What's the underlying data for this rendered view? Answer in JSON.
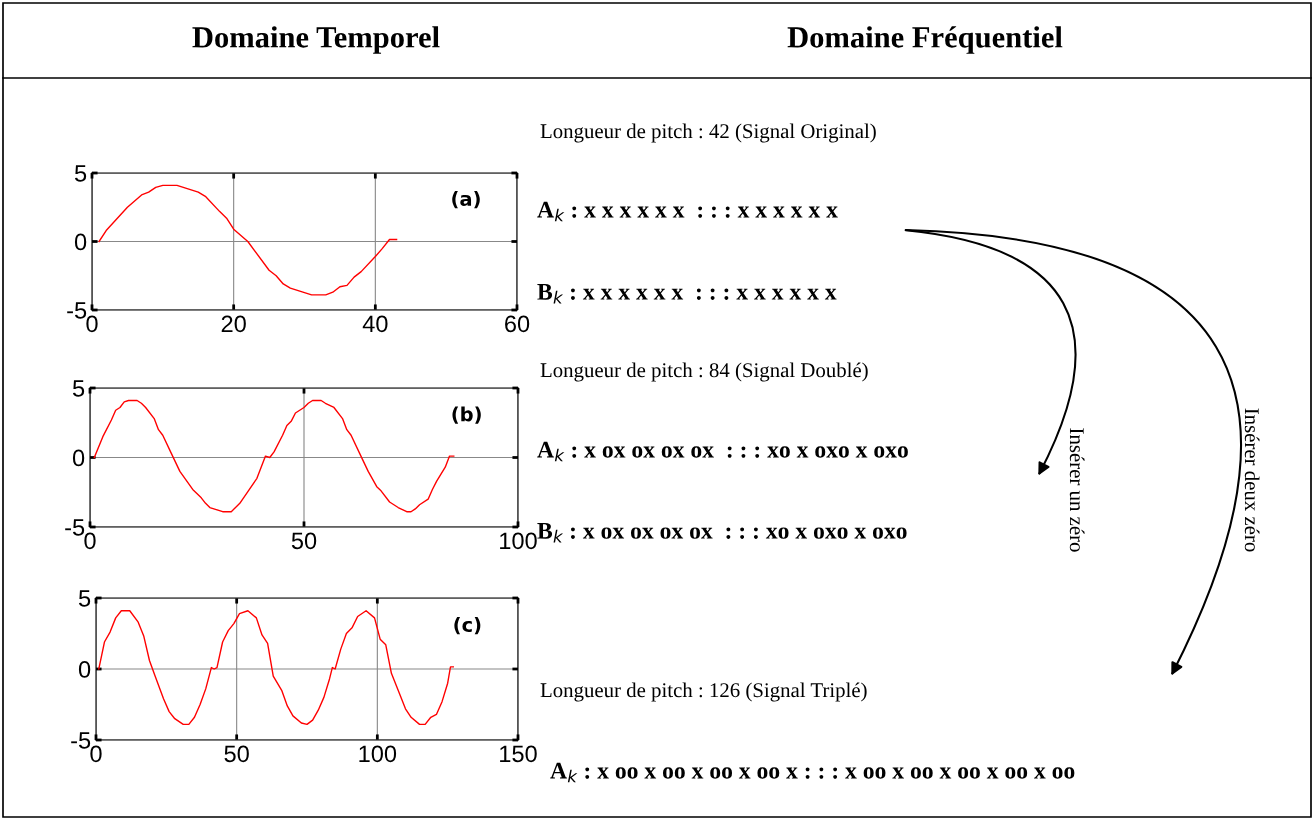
{
  "chart_data": [
    {
      "type": "line",
      "title": "Domaine Temporel",
      "annotations": [
        "(a)"
      ],
      "grid": true,
      "xlim": [
        0,
        60
      ],
      "ylim": [
        -5,
        5
      ],
      "xticks": [
        0,
        20,
        40,
        60
      ],
      "yticks": [
        -5,
        0,
        5
      ],
      "x": [
        1,
        2,
        5,
        7,
        8,
        9,
        10,
        12,
        15,
        16,
        18,
        19,
        20,
        22,
        25,
        26,
        27,
        28,
        31,
        33,
        34,
        35,
        36,
        37,
        38,
        40,
        41,
        42,
        43
      ],
      "series": [
        {
          "color": "#ff0000",
          "values": [
            0,
            0.8,
            2.5,
            3.4,
            3.6,
            3.95,
            4.1,
            4.1,
            3.6,
            3.3,
            2.2,
            1.7,
            0.9,
            0,
            -2.1,
            -2.5,
            -3.1,
            -3.4,
            -3.9,
            -3.9,
            -3.7,
            -3.3,
            -3.2,
            -2.6,
            -2.2,
            -1.1,
            -0.5,
            0.15,
            0.15
          ]
        }
      ]
    },
    {
      "type": "line",
      "annotations": [
        "(b)"
      ],
      "grid": true,
      "xlim": [
        0,
        100
      ],
      "ylim": [
        -5,
        5
      ],
      "xticks": [
        0,
        50,
        100
      ],
      "yticks": [
        -5,
        0,
        5
      ],
      "x": [
        1,
        3,
        5,
        6,
        7,
        8,
        9,
        11,
        12,
        13,
        15,
        16,
        17,
        19,
        21,
        24,
        26,
        27,
        28,
        31,
        33,
        34,
        35,
        37,
        39,
        41,
        42,
        43,
        45,
        46,
        47,
        48,
        50,
        51,
        52,
        54,
        55,
        57,
        59,
        60,
        61,
        63,
        65,
        67,
        68,
        70,
        72,
        74,
        75,
        76,
        77,
        79,
        80,
        81,
        83,
        84,
        85
      ],
      "series": [
        {
          "color": "#ff0000",
          "values": [
            0,
            1.5,
            2.7,
            3.4,
            3.6,
            4.0,
            4.1,
            4.1,
            3.9,
            3.6,
            2.8,
            2.0,
            1.6,
            0.3,
            -1.0,
            -2.3,
            -2.9,
            -3.3,
            -3.6,
            -3.9,
            -3.9,
            -3.6,
            -3.3,
            -2.4,
            -1.5,
            0.1,
            0,
            0.4,
            1.6,
            2.3,
            2.6,
            3.2,
            3.6,
            3.9,
            4.1,
            4.1,
            3.9,
            3.6,
            2.8,
            2.0,
            1.6,
            0.3,
            -1.0,
            -2.1,
            -2.4,
            -3.2,
            -3.6,
            -3.9,
            -3.9,
            -3.7,
            -3.4,
            -3.0,
            -2.3,
            -1.7,
            -0.7,
            0.1,
            0.1
          ]
        }
      ]
    },
    {
      "type": "line",
      "annotations": [
        "(c)"
      ],
      "grid": true,
      "xlim": [
        0,
        150
      ],
      "ylim": [
        -5,
        5
      ],
      "xticks": [
        0,
        50,
        100,
        150
      ],
      "yticks": [
        -5,
        0,
        5
      ],
      "x": [
        1,
        3,
        5,
        7,
        9,
        12,
        15,
        17,
        19,
        21,
        24,
        26,
        28,
        31,
        33,
        35,
        37,
        39,
        41,
        42,
        43,
        45,
        47,
        49,
        51,
        54,
        57,
        59,
        61,
        63,
        66,
        68,
        70,
        73,
        75,
        77,
        79,
        81,
        83,
        84,
        85,
        87,
        89,
        91,
        93,
        96,
        99,
        101,
        103,
        105,
        108,
        110,
        112,
        115,
        117,
        119,
        121,
        123,
        125,
        126,
        127
      ],
      "series": [
        {
          "color": "#ff0000",
          "values": [
            0,
            1.9,
            2.6,
            3.6,
            4.1,
            4.1,
            3.3,
            2.3,
            0.6,
            -0.5,
            -2.1,
            -3.0,
            -3.5,
            -3.9,
            -3.9,
            -3.4,
            -2.5,
            -1.4,
            0.1,
            0,
            0.1,
            1.9,
            2.7,
            3.2,
            3.9,
            4.1,
            3.6,
            2.4,
            1.8,
            -0.5,
            -1.5,
            -2.6,
            -3.3,
            -3.8,
            -3.9,
            -3.6,
            -2.9,
            -2.0,
            -0.7,
            0.1,
            0,
            1.4,
            2.5,
            2.9,
            3.7,
            4.1,
            3.6,
            2.1,
            1.7,
            -0.3,
            -1.8,
            -2.8,
            -3.4,
            -3.9,
            -3.9,
            -3.4,
            -3.2,
            -2.3,
            -1.0,
            0.15,
            0.15
          ]
        }
      ]
    },
    {
      "type": "other",
      "title": "Domaine Fréquentiel",
      "annotations": [
        "Longueur de pitch : 42 (Signal Original)",
        "A$_{k}$ : x x x x x x  : : : x x x x x x",
        "B$_{k}$ : x x x x x x  : : : x x x x x x",
        "Longueur de pitch : 84 (Signal Doublé)",
        "A$_{k}$ : x ox ox ox ox  : : : xo x oxo x oxo",
        "B$_{k}$ : x ox ox ox ox  : : : xo x oxo x oxo",
        "Longueur de pitch : 126 (Signal Triplé)",
        "A$_{k}$ : x oo x oo x oo x oo x : : : x oo x oo x oo x oo x oo",
        "Insérer un zéro",
        "Insérer deux zéro"
      ]
    }
  ]
}
